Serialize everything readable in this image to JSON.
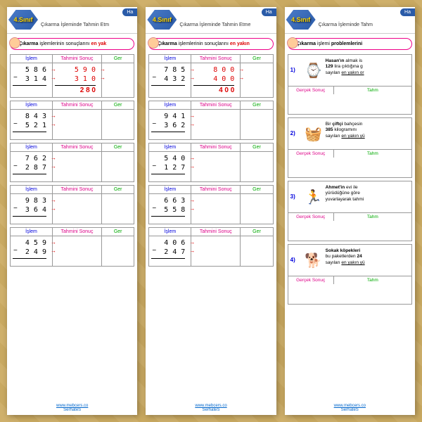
{
  "grade": "4.Sınıf",
  "tab": "Ha",
  "subtitle1": "Çıkarma İşleminde Tahmin Etm",
  "subtitle2": "Çıkarma İşleminde Tahmin Etme",
  "subtitle3": "Çıkarma İşleminde Tahm",
  "instr1_a": "Çıkarma",
  "instr1_b": " işlemlerinin sonuçlarını ",
  "instr1_c": "en yak",
  "instr2_a": "Çıkarma",
  "instr2_b": " işlemlerinin sonuçlarını ",
  "instr2_c": "en yakın",
  "instr3_a": "Çıkarma",
  "instr3_b": " işlemi ",
  "instr3_c": "problemlerini",
  "h_islem": "İşlem",
  "h_tahmin": "Tahmini Sonuç",
  "h_gercek": "Ger",
  "h_gsonuc": "Gerçek Sonuç",
  "h_tahm": "Tahm",
  "p1": [
    {
      "a": "5 8 6",
      "b": "3 1 4",
      "ta": "5 9 0",
      "tb": "3 1 0",
      "r": "2 8 0"
    },
    {
      "a": "8 4 3",
      "b": "5 2 1"
    },
    {
      "a": "7 6 2",
      "b": "2 8 7"
    },
    {
      "a": "9 8 3",
      "b": "3 6 4"
    },
    {
      "a": "4 5 9",
      "b": "2 4 9"
    }
  ],
  "p2": [
    {
      "a": "7 8 5",
      "b": "4 3 2",
      "ta": "8 0 0",
      "tb": "4 0 0",
      "r": "4 0 0"
    },
    {
      "a": "9 4 1",
      "b": "3 6 2"
    },
    {
      "a": "5 4 0",
      "b": "1 2 7"
    },
    {
      "a": "6 6 3",
      "b": "5 5 8"
    },
    {
      "a": "4 0 6",
      "b": "2 4 7"
    }
  ],
  "wp": [
    {
      "n": "1)",
      "icon": "⌚",
      "t": "<b>Hasan'ın</b> almak is<br><b>129</b> lira çıktığına g<br>sayıları <u>en yakın or</u>"
    },
    {
      "n": "2)",
      "icon": "🧺",
      "t": "Bir <b>çiftçi</b> bahçesin<br><b>385</b> kilogramını<br>sayıları <u>en yakın yü</u>"
    },
    {
      "n": "3)",
      "icon": "🏃",
      "t": "<b>Ahmet'in</b> evi ile<br>yürüdüğüne göre<br>yuvarlayarak tahmi"
    },
    {
      "n": "4)",
      "icon": "🐕",
      "t": "<b>Sokak köpekleri</b><br>bu paketlerden <b>24</b><br>sayıları <u>en yakın yü</u>"
    }
  ],
  "footer_link": "www.mebcers.co",
  "footer_name": "SerhateS"
}
